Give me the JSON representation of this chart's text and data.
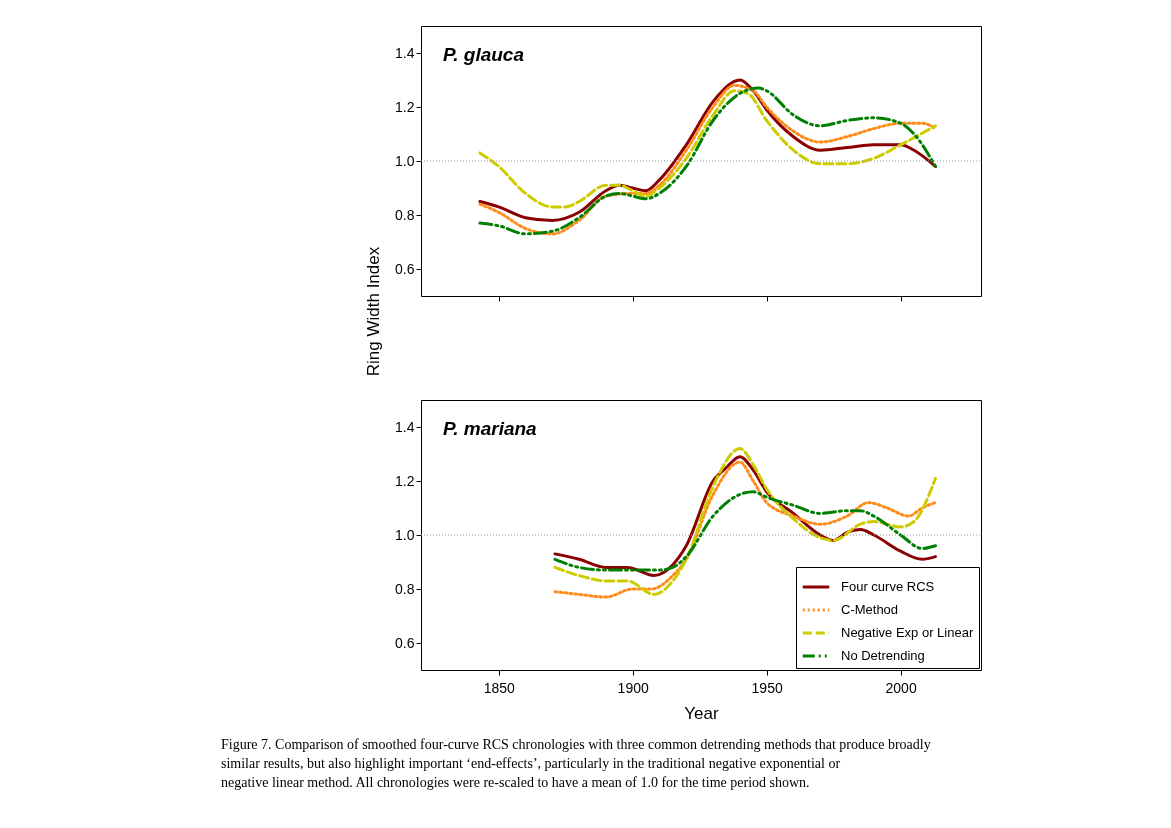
{
  "chart_data": [
    {
      "type": "line",
      "title": "P. glauca",
      "ylabel": "Ring Width Index",
      "xlim": [
        1821,
        2030
      ],
      "xticks": [
        1850,
        1900,
        1950,
        2000
      ],
      "ylim": [
        0.5,
        1.5
      ],
      "yticks": [
        0.6,
        0.8,
        {
          "value": 1.0,
          "label": "1.0"
        },
        1.2,
        1.4
      ],
      "tick_labels": "y",
      "grid": false,
      "legend": false,
      "marker": "none",
      "ref_lines": [
        {
          "axis": "y",
          "value": 1.0,
          "color": "#999999",
          "line_style": "dotted"
        }
      ],
      "series": [
        {
          "color": "#8b0000",
          "line_style": "solid",
          "x": [
            1843,
            1850,
            1860,
            1870,
            1880,
            1890,
            1895,
            1900,
            1905,
            1910,
            1920,
            1930,
            1937,
            1940,
            1945,
            1950,
            1960,
            1970,
            1980,
            1990,
            2000,
            2005,
            2013
          ],
          "values": [
            0.85,
            0.83,
            0.79,
            0.78,
            0.81,
            0.89,
            0.91,
            0.9,
            0.89,
            0.93,
            1.06,
            1.22,
            1.29,
            1.3,
            1.26,
            1.19,
            1.09,
            1.04,
            1.05,
            1.06,
            1.06,
            1.04,
            0.98
          ]
        },
        {
          "color": "#ff8c1a",
          "line_style": "dotted",
          "x": [
            1843,
            1850,
            1860,
            1870,
            1880,
            1890,
            1900,
            1905,
            1910,
            1920,
            1930,
            1938,
            1945,
            1950,
            1960,
            1970,
            1980,
            1990,
            2000,
            2008,
            2013
          ],
          "values": [
            0.84,
            0.81,
            0.75,
            0.73,
            0.78,
            0.87,
            0.88,
            0.88,
            0.91,
            1.04,
            1.2,
            1.28,
            1.26,
            1.2,
            1.11,
            1.07,
            1.09,
            1.12,
            1.14,
            1.14,
            1.12
          ]
        },
        {
          "color": "#cccc00",
          "line_style": "dashed",
          "x": [
            1843,
            1850,
            1860,
            1870,
            1875,
            1880,
            1890,
            1895,
            1900,
            1905,
            1910,
            1920,
            1930,
            1938,
            1943,
            1950,
            1960,
            1970,
            1980,
            1990,
            2000,
            2013
          ],
          "values": [
            1.03,
            0.98,
            0.88,
            0.83,
            0.83,
            0.85,
            0.91,
            0.91,
            0.89,
            0.87,
            0.9,
            1.01,
            1.17,
            1.26,
            1.25,
            1.15,
            1.04,
            0.99,
            0.99,
            1.01,
            1.06,
            1.13
          ]
        },
        {
          "color": "#008000",
          "line_style": "dashdotdot",
          "x": [
            1843,
            1850,
            1860,
            1870,
            1880,
            1890,
            1895,
            1900,
            1905,
            1910,
            1920,
            1930,
            1940,
            1947,
            1950,
            1960,
            1970,
            1980,
            1990,
            2000,
            2005,
            2013
          ],
          "values": [
            0.77,
            0.76,
            0.73,
            0.74,
            0.79,
            0.87,
            0.88,
            0.87,
            0.86,
            0.88,
            0.98,
            1.15,
            1.25,
            1.27,
            1.26,
            1.17,
            1.13,
            1.15,
            1.16,
            1.14,
            1.1,
            0.98
          ]
        }
      ]
    },
    {
      "type": "line",
      "title": "P. mariana",
      "xlabel": "Year",
      "xlim": [
        1821,
        2030
      ],
      "xticks": [
        {
          "value": 1850,
          "label": "1850"
        },
        {
          "value": 1900,
          "label": "1900"
        },
        {
          "value": 1950,
          "label": "1950"
        },
        {
          "value": 2000,
          "label": "2000"
        }
      ],
      "ylim": [
        0.5,
        1.5
      ],
      "yticks": [
        0.6,
        0.8,
        {
          "value": 1.0,
          "label": "1.0"
        },
        1.2,
        1.4
      ],
      "grid": false,
      "legend": "bottom right",
      "marker": "none",
      "ref_lines": [
        {
          "axis": "y",
          "value": 1.0,
          "color": "#999999",
          "line_style": "dotted"
        }
      ],
      "annotations": [
        "Figure 7. Comparison of smoothed four-curve RCS chronologies with three common detrending methods that produce broadly similar results, but also highlight important ‘end-effects’, particularly in the traditional negative exponential or negative linear method. All chronologies were re-scaled to have a mean of 1.0 for the time period shown."
      ],
      "series": [
        {
          "name": "Four curve RCS",
          "color": "#8b0000",
          "line_style": "solid",
          "x": [
            1871,
            1880,
            1890,
            1898,
            1908,
            1915,
            1920,
            1930,
            1935,
            1940,
            1945,
            1950,
            1960,
            1970,
            1975,
            1980,
            1985,
            1990,
            2000,
            2008,
            2013
          ],
          "values": [
            0.93,
            0.91,
            0.88,
            0.88,
            0.85,
            0.89,
            0.96,
            1.2,
            1.25,
            1.29,
            1.24,
            1.16,
            1.08,
            1.0,
            0.98,
            1.01,
            1.02,
            1.0,
            0.94,
            0.91,
            0.92
          ]
        },
        {
          "name": "C-Method",
          "color": "#ff8c1a",
          "line_style": "dotted",
          "x": [
            1871,
            1880,
            1890,
            1900,
            1907,
            1915,
            1920,
            1930,
            1940,
            1945,
            1950,
            1960,
            1970,
            1980,
            1988,
            1995,
            2003,
            2008,
            2013
          ],
          "values": [
            0.79,
            0.78,
            0.77,
            0.8,
            0.8,
            0.85,
            0.91,
            1.15,
            1.27,
            1.2,
            1.12,
            1.07,
            1.04,
            1.07,
            1.12,
            1.1,
            1.07,
            1.1,
            1.12
          ]
        },
        {
          "name": "Negative Exp or Linear",
          "color": "#cccc00",
          "line_style": "dashed",
          "x": [
            1871,
            1880,
            1890,
            1898,
            1908,
            1915,
            1920,
            1930,
            1940,
            1945,
            1950,
            1960,
            1970,
            1975,
            1985,
            1990,
            2000,
            2005,
            2013
          ],
          "values": [
            0.88,
            0.85,
            0.83,
            0.83,
            0.78,
            0.83,
            0.91,
            1.18,
            1.32,
            1.26,
            1.17,
            1.06,
            0.99,
            0.98,
            1.04,
            1.05,
            1.03,
            1.05,
            1.21
          ]
        },
        {
          "name": "No Detrending",
          "color": "#008000",
          "line_style": "dashdotdot",
          "x": [
            1871,
            1880,
            1890,
            1900,
            1910,
            1915,
            1920,
            1930,
            1940,
            1945,
            1950,
            1960,
            1970,
            1980,
            1985,
            1990,
            2000,
            2008,
            2013
          ],
          "values": [
            0.91,
            0.88,
            0.87,
            0.87,
            0.87,
            0.88,
            0.92,
            1.07,
            1.15,
            1.16,
            1.14,
            1.11,
            1.08,
            1.09,
            1.09,
            1.07,
            1.0,
            0.95,
            0.96
          ]
        }
      ]
    }
  ]
}
